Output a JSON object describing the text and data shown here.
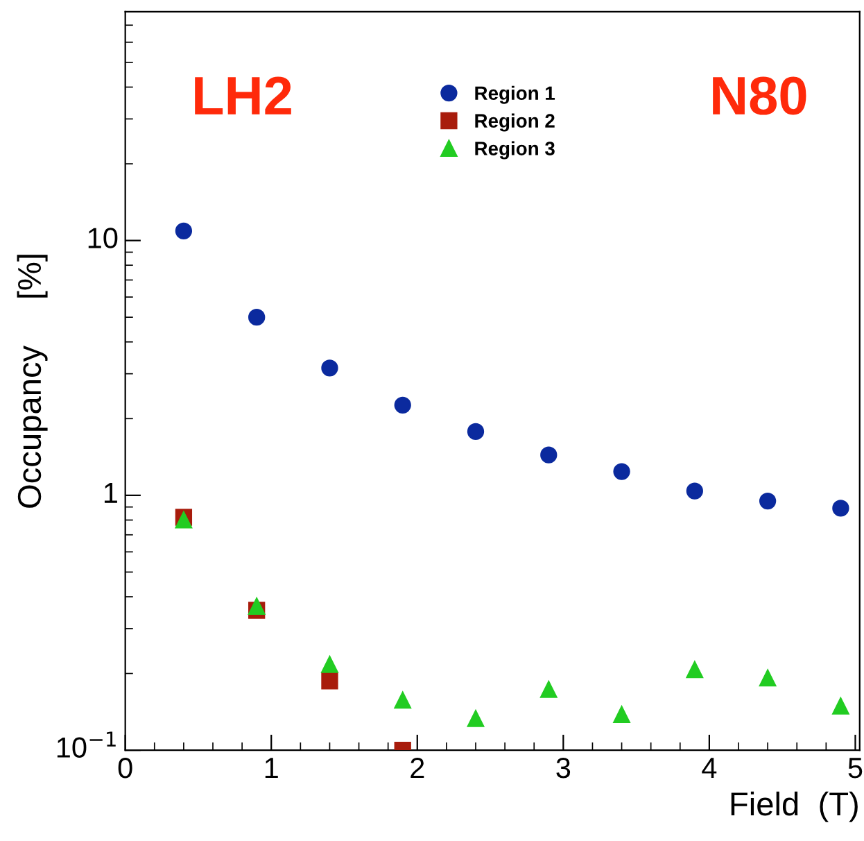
{
  "chart_data": {
    "type": "scatter",
    "xlabel": "Field  (T)",
    "ylabel": "Occupancy     [%]",
    "annotations": [
      "LH2",
      "N80"
    ],
    "x": [
      0.4,
      0.9,
      1.4,
      1.9,
      2.4,
      2.9,
      3.4,
      3.9,
      4.4,
      4.9
    ],
    "series": [
      {
        "name": "Region 1",
        "color": "#0b2a9e",
        "marker": "circle",
        "values": [
          10.9,
          5.0,
          3.16,
          2.26,
          1.78,
          1.44,
          1.24,
          1.04,
          0.95,
          0.89
        ]
      },
      {
        "name": "Region 2",
        "color": "#a81c0c",
        "marker": "square",
        "values": [
          0.82,
          0.354,
          0.187,
          0.1,
          null,
          null,
          null,
          null,
          null,
          null
        ]
      },
      {
        "name": "Region 3",
        "color": "#22cc22",
        "marker": "triangle",
        "values": [
          0.8,
          0.367,
          0.217,
          0.157,
          0.133,
          0.173,
          0.138,
          0.207,
          0.192,
          0.149
        ]
      }
    ],
    "log": "y",
    "xlim": [
      0,
      5.03
    ],
    "ylim": [
      0.1,
      79
    ],
    "xticks": [
      0,
      1,
      2,
      3,
      4,
      5
    ],
    "yticks": [
      {
        "value": 0.1,
        "label": "10$^{−1}$"
      },
      1,
      10
    ],
    "legend": "top",
    "grid": false
  }
}
